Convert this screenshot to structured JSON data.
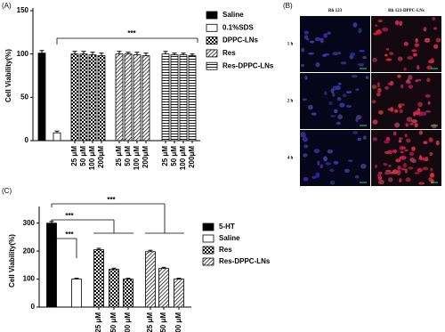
{
  "chart_data": [
    {
      "type": "bar",
      "label": "(A)",
      "y_label": "Cell Viability(%)",
      "ylim": [
        0,
        150
      ],
      "yticks": [
        0,
        50,
        100,
        150
      ],
      "legend": "right",
      "categories": [
        null,
        null,
        "25 μM",
        "50 μM",
        "100 μM",
        "200μM",
        "25 μM",
        "50 μM",
        "100 μM",
        "200μM",
        "25 μM",
        "50 μM",
        "100 μM",
        "200μM"
      ],
      "series": [
        {
          "name": "Saline",
          "color": "#000000",
          "pattern": "solid",
          "values": [
            101,
            null,
            null,
            null,
            null,
            null,
            null,
            null,
            null,
            null,
            null,
            null,
            null,
            null
          ],
          "errors": [
            3,
            null,
            null,
            null,
            null,
            null,
            null,
            null,
            null,
            null,
            null,
            null,
            null,
            null
          ]
        },
        {
          "name": "0.1%SDS",
          "color": "#000000",
          "pattern": "open",
          "values": [
            null,
            9,
            null,
            null,
            null,
            null,
            null,
            null,
            null,
            null,
            null,
            null,
            null,
            null
          ],
          "errors": [
            null,
            2,
            null,
            null,
            null,
            null,
            null,
            null,
            null,
            null,
            null,
            null,
            null,
            null
          ]
        },
        {
          "name": "DPPC-LNs",
          "color": "#000000",
          "pattern": "checker",
          "values": [
            null,
            null,
            100,
            100,
            99,
            98,
            null,
            null,
            null,
            null,
            null,
            null,
            null,
            null
          ],
          "errors": [
            null,
            null,
            3,
            3,
            3,
            3,
            null,
            null,
            null,
            null,
            null,
            null,
            null,
            null
          ]
        },
        {
          "name": "Res",
          "color": "#000000",
          "pattern": "diagonal",
          "values": [
            null,
            null,
            null,
            null,
            null,
            null,
            100,
            100,
            99,
            98,
            null,
            null,
            null,
            null
          ],
          "errors": [
            null,
            null,
            null,
            null,
            null,
            null,
            3,
            2,
            3,
            3,
            null,
            null,
            null,
            null
          ]
        },
        {
          "name": "Res-DPPC-LNs",
          "color": "#000000",
          "pattern": "horizontal",
          "values": [
            null,
            null,
            null,
            null,
            null,
            null,
            null,
            null,
            null,
            null,
            100,
            99,
            99,
            98
          ],
          "errors": [
            null,
            null,
            null,
            null,
            null,
            null,
            null,
            null,
            null,
            null,
            3,
            2,
            2,
            2
          ]
        }
      ],
      "annotations": [
        "***"
      ]
    },
    {
      "type": "bar",
      "label": "(C)",
      "y_label": "Cell Viability(%)",
      "ylim": [
        0,
        350
      ],
      "yticks": [
        0,
        100,
        200,
        300
      ],
      "legend": "right",
      "categories": [
        null,
        null,
        "25 μM",
        "50 μM",
        "100 μM",
        "25 μM",
        "50 μM",
        "100 μM"
      ],
      "series": [
        {
          "name": "5-HT",
          "color": "#000000",
          "pattern": "solid",
          "values": [
            300,
            null,
            null,
            null,
            null,
            null,
            null,
            null
          ],
          "errors": [
            6,
            null,
            null,
            null,
            null,
            null,
            null,
            null
          ]
        },
        {
          "name": "Saline",
          "color": "#000000",
          "pattern": "open",
          "values": [
            null,
            100,
            null,
            null,
            null,
            null,
            null,
            null
          ],
          "errors": [
            null,
            3,
            null,
            null,
            null,
            null,
            null,
            null
          ]
        },
        {
          "name": "Res",
          "color": "#000000",
          "pattern": "checker",
          "values": [
            null,
            null,
            205,
            135,
            100,
            null,
            null,
            null
          ],
          "errors": [
            null,
            null,
            5,
            4,
            3,
            null,
            null,
            null
          ]
        },
        {
          "name": "Res-DPPC-LNs",
          "color": "#000000",
          "pattern": "diagonal",
          "values": [
            null,
            null,
            null,
            null,
            null,
            198,
            138,
            100
          ],
          "errors": [
            null,
            null,
            null,
            null,
            null,
            5,
            4,
            3
          ]
        }
      ],
      "annotations": [
        "***",
        "***",
        "***"
      ]
    }
  ],
  "panel_b": {
    "label": "(B)",
    "columns": [
      "Rh 123",
      "Rh 123-DPPC-LNs"
    ],
    "rows": [
      "1 h",
      "2 h",
      "4 h"
    ]
  }
}
